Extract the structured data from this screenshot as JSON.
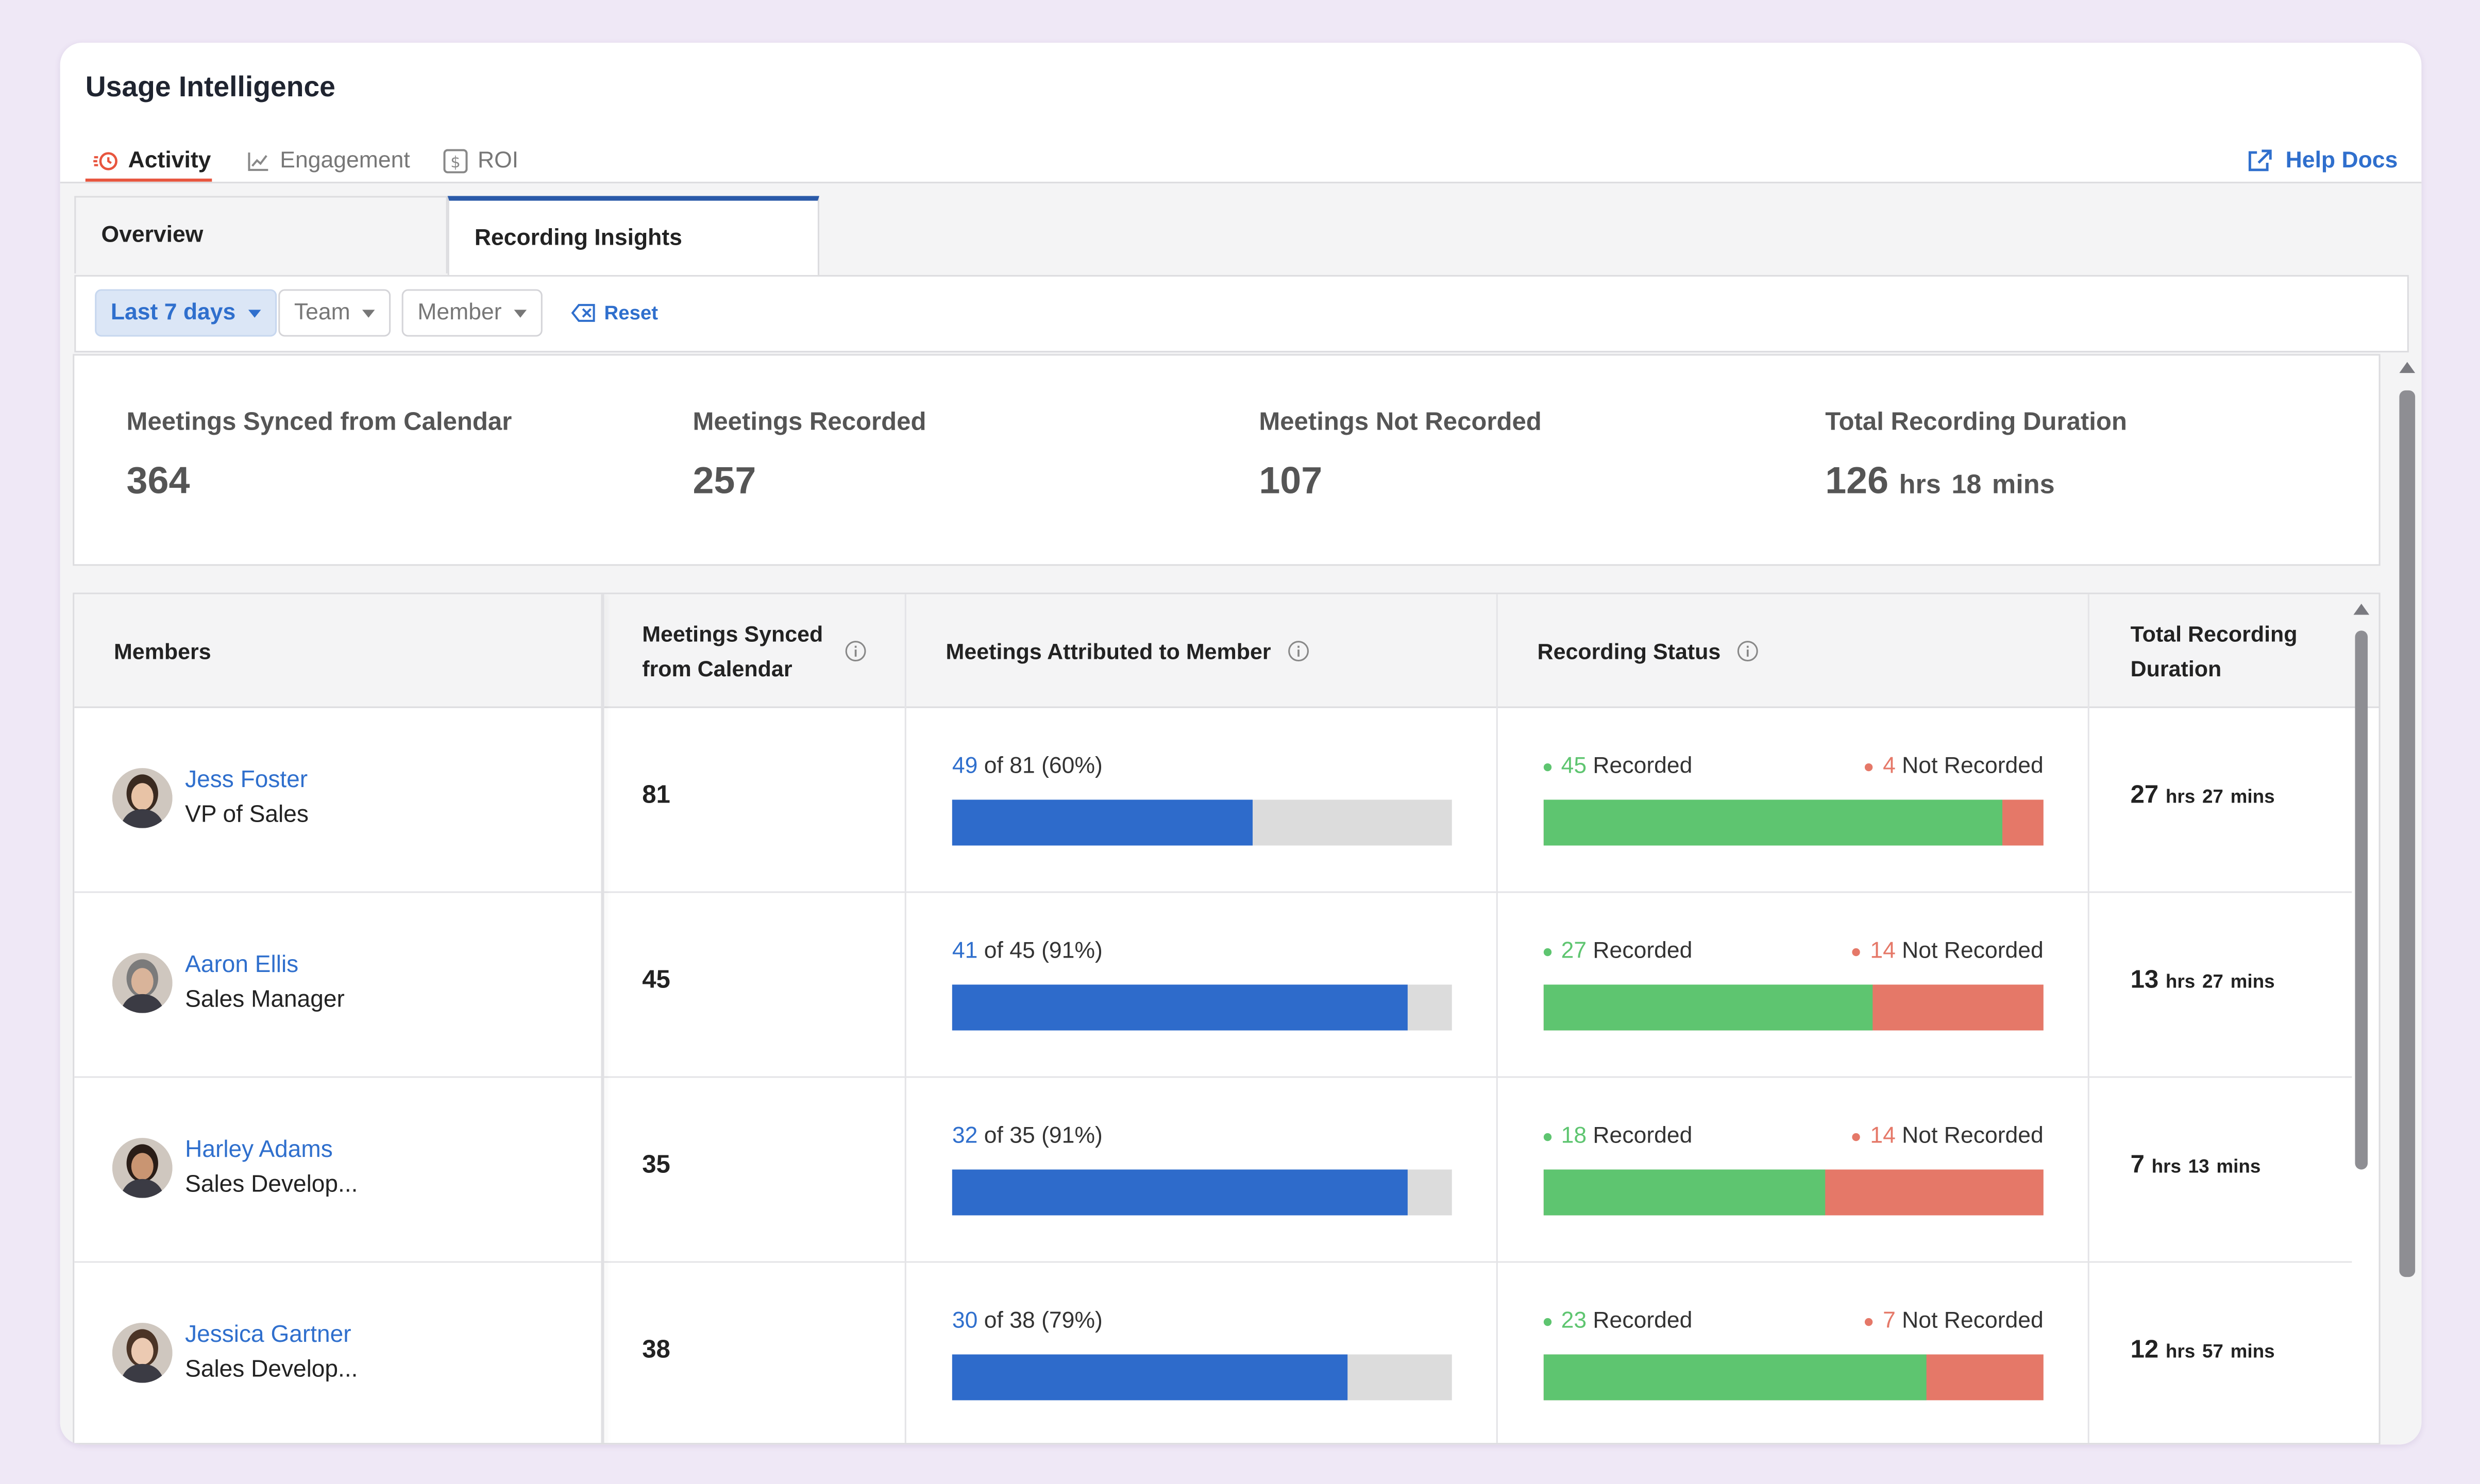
{
  "app": {
    "title": "Usage Intelligence"
  },
  "nav": {
    "tabs": [
      {
        "label": "Activity",
        "icon": "activity-clock-icon",
        "active": true
      },
      {
        "label": "Engagement",
        "icon": "engagement-chart-icon",
        "active": false
      },
      {
        "label": "ROI",
        "icon": "dollar-icon",
        "active": false
      }
    ],
    "help_label": "Help Docs"
  },
  "subtabs": [
    {
      "label": "Overview",
      "active": false
    },
    {
      "label": "Recording Insights",
      "active": true
    }
  ],
  "filters": {
    "date": "Last 7 days",
    "team": "Team",
    "member": "Member",
    "reset": "Reset"
  },
  "stats": [
    {
      "label": "Meetings Synced from Calendar",
      "value": "364"
    },
    {
      "label": "Meetings Recorded",
      "value": "257"
    },
    {
      "label": "Meetings Not Recorded",
      "value": "107"
    },
    {
      "label": "Total Recording Duration",
      "hours": "126",
      "hours_unit": "hrs",
      "mins": "18",
      "mins_unit": "mins"
    }
  ],
  "table": {
    "headers": {
      "members": "Members",
      "synced_line1": "Meetings Synced",
      "synced_line2": "from Calendar",
      "attributed": "Meetings Attributed to Member",
      "status": "Recording Status",
      "duration_line1": "Total Recording",
      "duration_line2": "Duration"
    },
    "rows": [
      {
        "name": "Jess Foster",
        "role": "VP of Sales",
        "synced": "81",
        "attributed": "49",
        "attributed_rest": "of 81 (60%)",
        "attributed_pct": 60,
        "recorded": "45",
        "not_recorded": "4",
        "recorded_label": "Recorded",
        "not_recorded_label": "Not Recorded",
        "recorded_pct": 91.8,
        "dur_h": "27",
        "dur_h_unit": "hrs",
        "dur_m": "27",
        "dur_m_unit": "mins"
      },
      {
        "name": "Aaron Ellis",
        "role": "Sales Manager",
        "synced": "45",
        "attributed": "41",
        "attributed_rest": "of 45 (91%)",
        "attributed_pct": 91,
        "recorded": "27",
        "not_recorded": "14",
        "recorded_label": "Recorded",
        "not_recorded_label": "Not Recorded",
        "recorded_pct": 65.9,
        "dur_h": "13",
        "dur_h_unit": "hrs",
        "dur_m": "27",
        "dur_m_unit": "mins"
      },
      {
        "name": "Harley Adams",
        "role": "Sales Develop...",
        "synced": "35",
        "attributed": "32",
        "attributed_rest": "of 35 (91%)",
        "attributed_pct": 91,
        "recorded": "18",
        "not_recorded": "14",
        "recorded_label": "Recorded",
        "not_recorded_label": "Not Recorded",
        "recorded_pct": 56.3,
        "dur_h": "7",
        "dur_h_unit": "hrs",
        "dur_m": "13",
        "dur_m_unit": "mins"
      },
      {
        "name": "Jessica Gartner",
        "role": "Sales Develop...",
        "synced": "38",
        "attributed": "30",
        "attributed_rest": "of 38 (79%)",
        "attributed_pct": 79,
        "recorded": "23",
        "not_recorded": "7",
        "recorded_label": "Recorded",
        "not_recorded_label": "Not Recorded",
        "recorded_pct": 76.7,
        "dur_h": "12",
        "dur_h_unit": "hrs",
        "dur_m": "57",
        "dur_m_unit": "mins"
      }
    ]
  },
  "colors": {
    "accent": "#2f6fcd",
    "active_tab_underline": "#e8553e",
    "subtab_indicator": "#2a59a8",
    "attributed_bar": "#2e6bcb",
    "recorded": "#5ec570",
    "not_recorded": "#e57868"
  }
}
